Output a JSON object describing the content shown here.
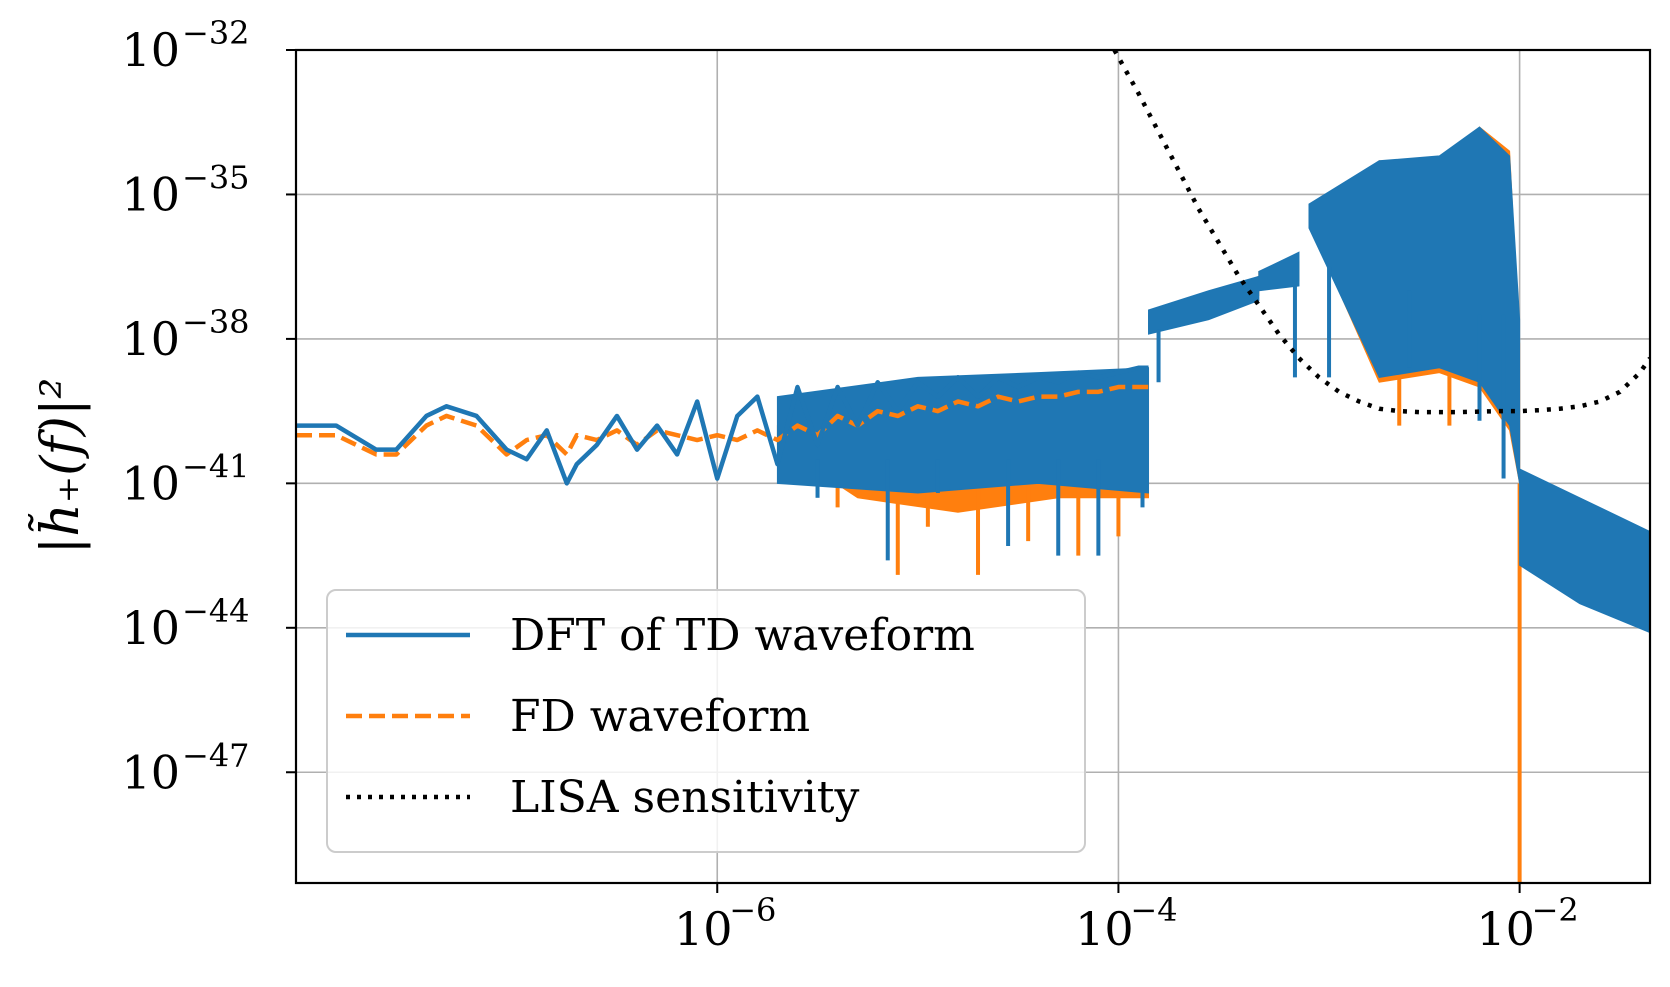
{
  "chart_data": {
    "type": "line",
    "title": "",
    "xlabel": "",
    "ylabel": "|h̃₊(f)|²",
    "xscale": "log",
    "yscale": "log",
    "xlim_log10": [
      -8.1,
      -1.35
    ],
    "ylim_log10": [
      -49.3,
      -32
    ],
    "grid": true,
    "x_ticks": [
      {
        "base": "10",
        "exp": "−6",
        "log10": -6
      },
      {
        "base": "10",
        "exp": "−4",
        "log10": -4
      },
      {
        "base": "10",
        "exp": "−2",
        "log10": -2
      }
    ],
    "y_ticks": [
      {
        "base": "10",
        "exp": "−32",
        "log10": -32
      },
      {
        "base": "10",
        "exp": "−35",
        "log10": -35
      },
      {
        "base": "10",
        "exp": "−38",
        "log10": -38
      },
      {
        "base": "10",
        "exp": "−41",
        "log10": -41
      },
      {
        "base": "10",
        "exp": "−44",
        "log10": -44
      },
      {
        "base": "10",
        "exp": "−47",
        "log10": -47
      }
    ],
    "legend": {
      "placement": "lower-left",
      "entries": [
        {
          "label": "DFT of TD waveform",
          "color": "#1f77b4",
          "style": "solid"
        },
        {
          "label": "FD waveform",
          "color": "#ff7f0e",
          "style": "dashed"
        },
        {
          "label": "LISA sensitivity",
          "color": "#000000",
          "style": "dotted"
        }
      ]
    },
    "series": [
      {
        "name": "DFT of TD waveform",
        "color": "#1f77b4",
        "style": "solid",
        "log10_x": [
          -8.1,
          -7.9,
          -7.7,
          -7.6,
          -7.45,
          -7.35,
          -7.2,
          -7.05,
          -6.95,
          -6.85,
          -6.75,
          -6.7,
          -6.6,
          -6.5,
          -6.4,
          -6.3,
          -6.2,
          -6.1,
          -6.0,
          -5.9,
          -5.8,
          -5.7,
          -5.6,
          -5.5,
          -5.4,
          -5.3,
          -5.2,
          -5.1,
          -5.0,
          -4.9,
          -4.8,
          -4.7,
          -4.6,
          -4.5,
          -4.4,
          -4.3,
          -4.2,
          -4.1,
          -4.0,
          -3.9,
          -3.85
        ],
        "log10_y": [
          -39.8,
          -39.8,
          -40.3,
          -40.3,
          -39.6,
          -39.4,
          -39.6,
          -40.3,
          -40.5,
          -39.9,
          -41.0,
          -40.6,
          -40.2,
          -39.6,
          -40.3,
          -39.8,
          -40.4,
          -39.3,
          -40.9,
          -39.6,
          -39.2,
          -40.6,
          -39.0,
          -40.2,
          -39.0,
          -39.8,
          -38.9,
          -39.5,
          -38.9,
          -39.2,
          -38.8,
          -39.2,
          -38.8,
          -39.0,
          -38.8,
          -38.9,
          -38.7,
          -38.8,
          -38.7,
          -38.6,
          -38.6
        ]
      },
      {
        "name": "FD waveform",
        "color": "#ff7f0e",
        "style": "dashed",
        "log10_x": [
          -8.1,
          -7.9,
          -7.7,
          -7.6,
          -7.45,
          -7.35,
          -7.2,
          -7.05,
          -6.95,
          -6.85,
          -6.75,
          -6.7,
          -6.6,
          -6.5,
          -6.4,
          -6.3,
          -6.2,
          -6.1,
          -6.0,
          -5.9,
          -5.8,
          -5.7,
          -5.6,
          -5.5,
          -5.4,
          -5.3,
          -5.2,
          -5.1,
          -5.0,
          -4.9,
          -4.8,
          -4.7,
          -4.6,
          -4.5,
          -4.4,
          -4.3,
          -4.2,
          -4.1,
          -4.0,
          -3.9,
          -3.85
        ],
        "log10_y": [
          -40.0,
          -40.0,
          -40.4,
          -40.4,
          -39.8,
          -39.6,
          -39.8,
          -40.4,
          -40.1,
          -40.0,
          -40.4,
          -40.0,
          -40.1,
          -39.9,
          -40.2,
          -39.9,
          -40.0,
          -40.1,
          -40.0,
          -40.1,
          -39.9,
          -40.1,
          -39.8,
          -40.0,
          -39.6,
          -39.8,
          -39.5,
          -39.6,
          -39.4,
          -39.5,
          -39.3,
          -39.4,
          -39.2,
          -39.3,
          -39.2,
          -39.2,
          -39.1,
          -39.1,
          -39.0,
          -39.0,
          -39.0
        ]
      },
      {
        "name": "LISA sensitivity",
        "color": "#000000",
        "style": "dotted",
        "log10_x": [
          -4.02,
          -3.9,
          -3.8,
          -3.7,
          -3.6,
          -3.5,
          -3.4,
          -3.3,
          -3.2,
          -3.1,
          -3.0,
          -2.9,
          -2.8,
          -2.7,
          -2.6,
          -2.5,
          -2.4,
          -2.3,
          -2.2,
          -2.1,
          -2.0,
          -1.9,
          -1.8,
          -1.7,
          -1.6,
          -1.5,
          -1.4,
          -1.35
        ],
        "log10_y": [
          -32.0,
          -32.9,
          -33.7,
          -34.5,
          -35.3,
          -36.0,
          -36.7,
          -37.3,
          -37.9,
          -38.4,
          -38.8,
          -39.1,
          -39.3,
          -39.45,
          -39.5,
          -39.52,
          -39.52,
          -39.52,
          -39.51,
          -39.5,
          -39.5,
          -39.48,
          -39.45,
          -39.4,
          -39.3,
          -39.1,
          -38.7,
          -38.4
        ]
      }
    ]
  }
}
